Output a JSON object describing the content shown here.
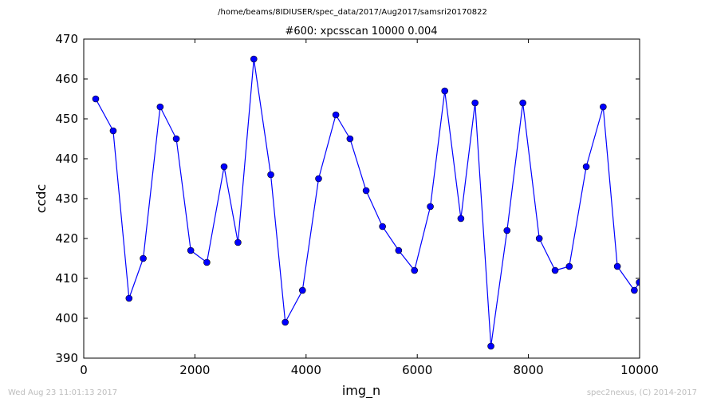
{
  "header": {
    "file_path": "/home/beams/8IDIUSER/spec_data/2017/Aug2017/samsri20170822"
  },
  "footer": {
    "timestamp": "Wed Aug 23 11:01:13 2017",
    "credit": "spec2nexus, (C) 2014-2017"
  },
  "chart_data": {
    "type": "line",
    "title": "#600: xpcsscan 10000 0.004",
    "xlabel": "img_n",
    "ylabel": "ccdc",
    "xlim": [
      0,
      10000
    ],
    "ylim": [
      390,
      470
    ],
    "xticks": [
      0,
      2000,
      4000,
      6000,
      8000,
      10000
    ],
    "yticks": [
      390,
      400,
      410,
      420,
      430,
      440,
      450,
      460,
      470
    ],
    "grid": false,
    "line_color": "#0000ff",
    "marker": "circle",
    "series": [
      {
        "x": [
          215,
          530,
          815,
          1070,
          1375,
          1665,
          1925,
          2215,
          2525,
          2775,
          3060,
          3365,
          3625,
          3935,
          4225,
          4535,
          4790,
          5080,
          5375,
          5665,
          5950,
          6235,
          6495,
          6785,
          7040,
          7325,
          7615,
          7900,
          8195,
          8480,
          8735,
          9040,
          9345,
          9600,
          9905,
          9995
        ],
        "y": [
          455,
          447,
          405,
          415,
          453,
          445,
          417,
          414,
          438,
          419,
          465,
          436,
          399,
          407,
          435,
          451,
          445,
          432,
          423,
          417,
          412,
          428,
          457,
          425,
          454,
          393,
          422,
          454,
          420,
          412,
          413,
          438,
          453,
          413,
          407,
          409
        ]
      }
    ]
  }
}
